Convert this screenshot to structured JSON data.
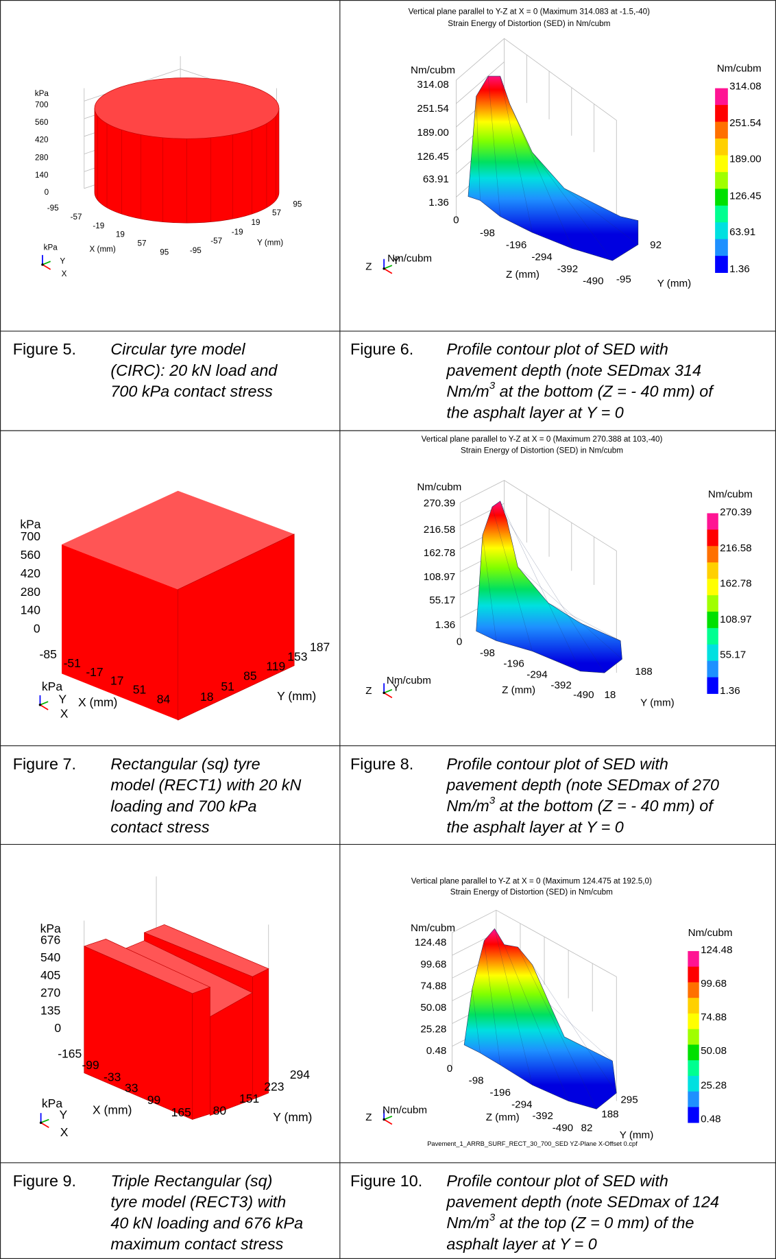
{
  "figures": [
    {
      "number": "Figure 5.",
      "caption": [
        "Circular tyre model",
        "(CIRC): 20 kN load and",
        "700 kPa contact stress"
      ],
      "plot": {
        "z_unit": "kPa",
        "z_ticks": [
          "700",
          "560",
          "420",
          "280",
          "140",
          "0"
        ],
        "x_ticks": [
          "-95",
          "-57",
          "-19",
          "19",
          "57",
          "95"
        ],
        "x_label": "X (mm)",
        "y_ticks": [
          "-95",
          "-57",
          "-19",
          "19",
          "57",
          "95"
        ],
        "y_label": "Y (mm)",
        "triad": [
          "kPa",
          "Y",
          "X"
        ]
      }
    },
    {
      "number": "Figure 6.",
      "caption": [
        "Profile contour plot of SED with",
        "pavement depth (note SEDmax 314",
        {
          "before": "Nm/m",
          "sup": "3",
          "after": " at the bottom (Z = - 40 mm) of"
        },
        "the asphalt layer at Y = 0"
      ],
      "plot": {
        "title": [
          "Vertical plane parallel to Y-Z at X = 0 (Maximum 314.083 at -1.5,-40)",
          "Strain Energy of Distortion (SED) in Nm/cubm"
        ],
        "z_unit": "Nm/cubm",
        "z_ticks": [
          "314.08",
          "251.54",
          "189.00",
          "126.45",
          "63.91",
          "1.36"
        ],
        "origin": "0",
        "depth_ticks": [
          "-98",
          "-196",
          "-294",
          "-392",
          "-490"
        ],
        "depth_label": "Z (mm)",
        "y_ticks": [
          "-95",
          "92"
        ],
        "y_label": "Y (mm)",
        "legend_title": "Nm/cubm",
        "legend_labels": [
          "314.08",
          "251.54",
          "189.00",
          "126.45",
          "63.91",
          "1.36"
        ],
        "triad": [
          "Z",
          "Y",
          "Nm/cubm"
        ]
      }
    },
    {
      "number": "Figure 7.",
      "caption": [
        "Rectangular (sq) tyre",
        "model (RECT1) with 20 kN",
        "loading and 700 kPa",
        "contact stress"
      ],
      "plot": {
        "z_unit": "kPa",
        "z_ticks": [
          "700",
          "560",
          "420",
          "280",
          "140",
          "0"
        ],
        "x_ticks": [
          "-85",
          "-51",
          "-17",
          "17",
          "51",
          "84"
        ],
        "x_label": "X (mm)",
        "y_ticks": [
          "18",
          "51",
          "85",
          "119",
          "153",
          "187"
        ],
        "y_label": "Y (mm)",
        "triad": [
          "kPa",
          "Y",
          "X"
        ]
      }
    },
    {
      "number": "Figure 8.",
      "caption": [
        "Profile contour plot of SED with",
        "pavement depth (note SEDmax of 270",
        {
          "before": "Nm/m",
          "sup": "3",
          "after": " at the bottom (Z = - 40 mm) of"
        },
        "the asphalt layer at Y = 0"
      ],
      "plot": {
        "title": [
          "Vertical plane parallel to Y-Z at X = 0 (Maximum 270.388 at 103,-40)",
          "Strain Energy of Distortion (SED) in Nm/cubm"
        ],
        "z_unit": "Nm/cubm",
        "z_ticks": [
          "270.39",
          "216.58",
          "162.78",
          "108.97",
          "55.17",
          "1.36"
        ],
        "origin": "0",
        "depth_ticks": [
          "-98",
          "-196",
          "-294",
          "-392",
          "-490"
        ],
        "depth_label": "Z (mm)",
        "y_ticks": [
          "18",
          "188"
        ],
        "y_label": "Y (mm)",
        "legend_title": "Nm/cubm",
        "legend_labels": [
          "270.39",
          "216.58",
          "162.78",
          "108.97",
          "55.17",
          "1.36"
        ],
        "triad": [
          "Z",
          "Y",
          "Nm/cubm"
        ]
      }
    },
    {
      "number": "Figure 9.",
      "caption": [
        "Triple Rectangular (sq)",
        "tyre model (RECT3) with",
        "40 kN loading and 676 kPa",
        "maximum contact stress"
      ],
      "plot": {
        "z_unit": "kPa",
        "z_ticks": [
          "676",
          "540",
          "405",
          "270",
          "135",
          "0"
        ],
        "x_ticks": [
          "-165",
          "-99",
          "-33",
          "33",
          "99",
          "165"
        ],
        "x_label": "X (mm)",
        "y_ticks": [
          "80",
          "151",
          "223",
          "294"
        ],
        "y_label": "Y (mm)",
        "triad": [
          "kPa",
          "Y",
          "X"
        ]
      }
    },
    {
      "number": "Figure 10.",
      "caption": [
        "Profile contour plot of SED with",
        "pavement depth (note SEDmax of 124",
        {
          "before": "Nm/m",
          "sup": "3",
          "after": " at the top (Z = 0 mm) of the"
        },
        "asphalt layer at Y = 0"
      ],
      "plot": {
        "title": [
          "Vertical plane parallel to Y-Z at X = 0 (Maximum 124.475 at 192.5,0)",
          "Strain Energy of Distortion (SED) in Nm/cubm"
        ],
        "z_unit": "Nm/cubm",
        "z_ticks": [
          "124.48",
          "99.68",
          "74.88",
          "50.08",
          "25.28",
          "0.48"
        ],
        "origin": "0",
        "depth_ticks": [
          "-98",
          "-196",
          "-294",
          "-392",
          "-490"
        ],
        "depth_label": "Z (mm)",
        "y_ticks": [
          "82",
          "188",
          "295"
        ],
        "y_label": "Y (mm)",
        "legend_title": "Nm/cubm",
        "legend_labels": [
          "124.48",
          "99.68",
          "74.88",
          "50.08",
          "25.28",
          "0.48"
        ],
        "triad": [
          "Z",
          "Nm/cubm"
        ],
        "footer": "Pavement_1_ARRB_SURF_RECT_30_700_SED YZ-Plane X-Offset 0.cpf"
      }
    }
  ]
}
